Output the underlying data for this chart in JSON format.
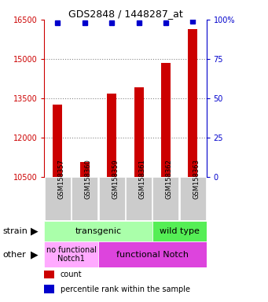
{
  "title": "GDS2848 / 1448287_at",
  "samples": [
    "GSM158357",
    "GSM158360",
    "GSM158359",
    "GSM158361",
    "GSM158362",
    "GSM158363"
  ],
  "counts": [
    13250,
    11050,
    13680,
    13900,
    14850,
    16150
  ],
  "percentiles": [
    98,
    98,
    98,
    98,
    98,
    99
  ],
  "ylim_left": [
    10500,
    16500
  ],
  "yticks_left": [
    10500,
    12000,
    13500,
    15000,
    16500
  ],
  "yticks_right": [
    0,
    25,
    50,
    75,
    100
  ],
  "ylim_right": [
    0,
    100
  ],
  "bar_color": "#cc0000",
  "dot_color": "#0000cc",
  "strain_transgenic_color": "#aaffaa",
  "strain_wildtype_color": "#55ee55",
  "other_nofunc_color": "#ff88ff",
  "other_func_color": "#dd44dd",
  "strain_row_label": "strain",
  "other_row_label": "other",
  "legend_count_label": "count",
  "legend_pct_label": "percentile rank within the sample",
  "title_color": "#000000",
  "tick_color_left": "#cc0000",
  "tick_color_right": "#0000cc",
  "xlabel_bg": "#cccccc",
  "bg_color": "#ffffff"
}
